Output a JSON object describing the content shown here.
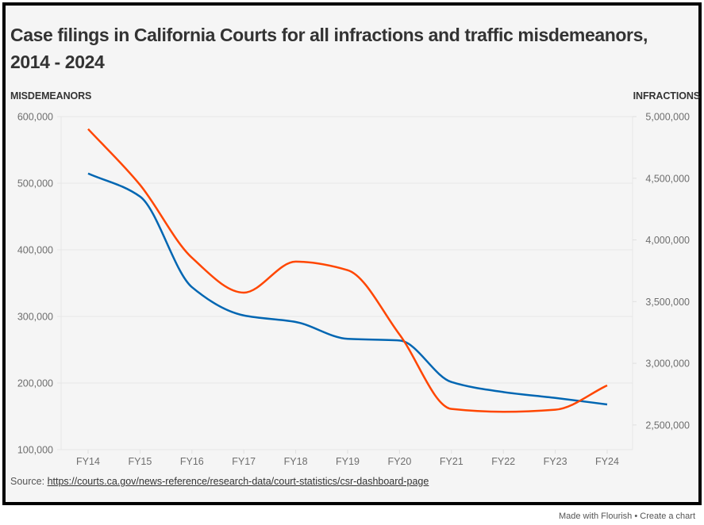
{
  "header": {
    "title": "Case filings in California Courts for all infractions and traffic misdemeanors, 2014 - 2024"
  },
  "chart_data": {
    "type": "line",
    "title": "Case filings in California Courts for all infractions and traffic misdemeanors, 2014 - 2024",
    "xlabel": "",
    "categories": [
      "FY14",
      "FY15",
      "FY16",
      "FY17",
      "FY18",
      "FY19",
      "FY20",
      "FY21",
      "FY22",
      "FY23",
      "FY24"
    ],
    "axes": {
      "left": {
        "label": "MISDEMEANORS",
        "range": [
          100000,
          600000
        ],
        "ticks": [
          100000,
          200000,
          300000,
          400000,
          500000,
          600000
        ],
        "tick_labels": [
          "100,000",
          "200,000",
          "300,000",
          "400,000",
          "500,000",
          "600,000"
        ]
      },
      "right": {
        "label": "INFRACTIONS",
        "range": [
          2300000,
          5000000
        ],
        "ticks": [
          2500000,
          3000000,
          3500000,
          4000000,
          4500000,
          5000000
        ],
        "tick_labels": [
          "2,500,000",
          "3,000,000",
          "3,500,000",
          "4,000,000",
          "4,500,000",
          "5,000,000"
        ]
      }
    },
    "grid": true,
    "legend": "none",
    "series": [
      {
        "name": "Misdemeanors",
        "axis": "left",
        "color": "#0066b2",
        "values": [
          514600,
          480000,
          344000,
          301500,
          291700,
          266300,
          263900,
          201500,
          186500,
          177700,
          167900
        ]
      },
      {
        "name": "Infractions",
        "axis": "right",
        "color": "#ff4600",
        "values": [
          4899000,
          4447000,
          3856000,
          3573000,
          3824000,
          3755000,
          3233000,
          2630000,
          2607000,
          2624000,
          2821000
        ]
      }
    ]
  },
  "source": {
    "prefix": "Source: ",
    "link_text": "https://courts.ca.gov/news-reference/research-data/court-statistics/csr-dashboard-page"
  },
  "footer": {
    "made_with": "Made with Flourish",
    "separator": "•",
    "create": "Create a chart"
  }
}
